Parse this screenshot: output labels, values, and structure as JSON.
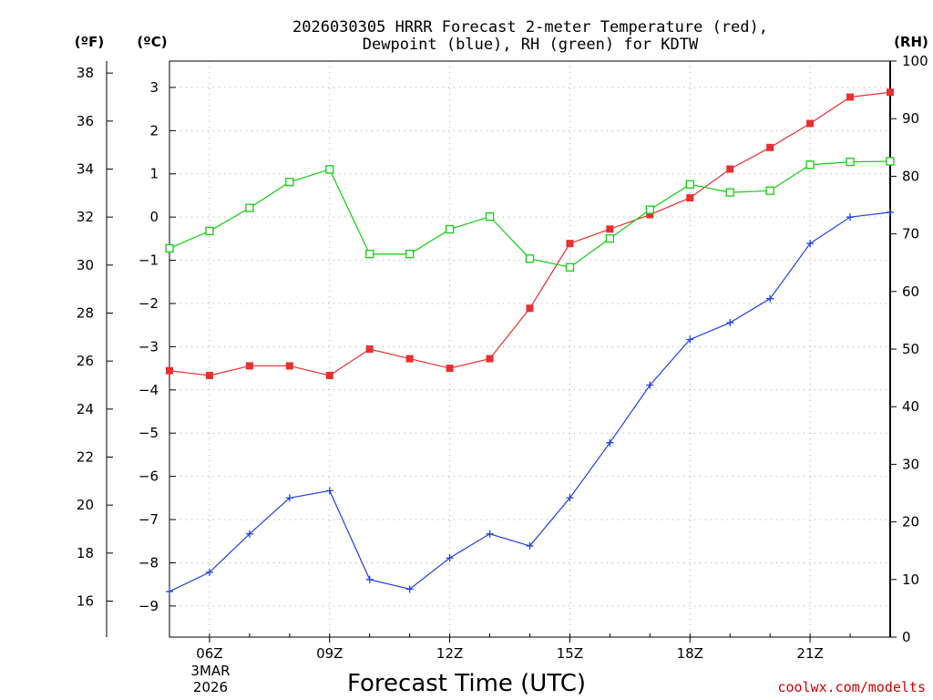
{
  "chart_data": {
    "type": "line",
    "title_line1": "2026030305 HRRR Forecast 2-meter Temperature (red),",
    "title_line2": "Dewpoint (blue), RH (green) for KDTW",
    "xlabel": "Forecast Time (UTC)",
    "date_labels": [
      "3MAR",
      "2026"
    ],
    "credit": "coolwx.com/modelts",
    "unit_labels": {
      "fahrenheit": "(ºF)",
      "celsius": "(ºC)",
      "rh": "(RH)"
    },
    "x": [
      5,
      6,
      7,
      8,
      9,
      10,
      11,
      12,
      13,
      14,
      15,
      16,
      17,
      18,
      19,
      20,
      21,
      22,
      23
    ],
    "x_tick_hours": [
      6,
      9,
      12,
      15,
      18,
      21
    ],
    "x_tick_labels": [
      "06Z",
      "09Z",
      "12Z",
      "15Z",
      "18Z",
      "21Z"
    ],
    "xlim": [
      5,
      23
    ],
    "fahrenheit_axis": {
      "lim": [
        14.5,
        38.5
      ],
      "ticks": [
        16,
        18,
        20,
        22,
        24,
        26,
        28,
        30,
        32,
        34,
        36,
        38
      ]
    },
    "celsius_axis": {
      "lim": [
        -9.72,
        3.61
      ],
      "ticks": [
        -9,
        -8,
        -7,
        -6,
        -5,
        -4,
        -3,
        -2,
        -1,
        0,
        1,
        2,
        3
      ],
      "tick_labels": [
        "−9",
        "−8",
        "−7",
        "−6",
        "−5",
        "−4",
        "−3",
        "−2",
        "−1",
        "0",
        "1",
        "2",
        "3"
      ]
    },
    "rh_axis": {
      "lim": [
        0,
        100
      ],
      "ticks": [
        0,
        10,
        20,
        30,
        40,
        50,
        60,
        70,
        80,
        90,
        100
      ]
    },
    "series": [
      {
        "name": "2-meter Temperature",
        "axis": "fahrenheit",
        "color": "#e83030",
        "marker": "filled-square",
        "values": [
          25.6,
          25.4,
          25.8,
          25.8,
          25.4,
          26.5,
          26.1,
          25.7,
          26.1,
          28.2,
          30.9,
          31.5,
          32.1,
          32.8,
          34.0,
          34.9,
          35.9,
          37.0,
          37.2
        ]
      },
      {
        "name": "Dewpoint",
        "axis": "fahrenheit",
        "color": "#2040e8",
        "marker": "plus",
        "values": [
          16.4,
          17.2,
          18.8,
          20.3,
          20.6,
          16.9,
          16.5,
          17.8,
          18.8,
          18.3,
          20.3,
          22.6,
          25.0,
          26.9,
          27.6,
          28.6,
          30.9,
          32.0,
          32.2
        ]
      },
      {
        "name": "RH",
        "axis": "rh",
        "color": "#10d010",
        "marker": "open-square",
        "values": [
          67.5,
          70.5,
          74.5,
          79.0,
          81.2,
          66.5,
          66.5,
          70.8,
          73.0,
          65.7,
          64.2,
          69.2,
          74.2,
          78.6,
          77.2,
          77.5,
          82.0,
          82.5,
          82.6
        ]
      }
    ]
  }
}
